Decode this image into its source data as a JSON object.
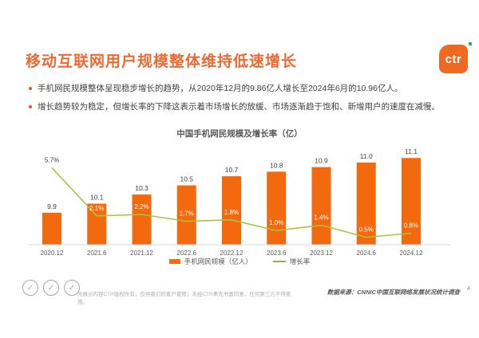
{
  "slide": {
    "title": "移动互联网用户规模整体维持低速增长",
    "bullets": [
      "手机网民规模整体呈现稳步增长的趋势，从2020年12月的9.86亿人增长至2024年6月的10.96亿人。",
      "增长趋势较为稳定，但增长率的下降这表示着市场增长的放缓、市场逐渐趋于饱和、新增用户的速度在减慢。"
    ],
    "page_number": "4"
  },
  "logo": {
    "text": "ctr"
  },
  "chart_data": {
    "type": "bar",
    "title": "中国手机网民规模及增长率（亿）",
    "categories": [
      "2020.12",
      "2021.6",
      "2021.12",
      "2022.6",
      "2022.12",
      "2023.6",
      "2023.12",
      "2024.6",
      "2024.12"
    ],
    "series": [
      {
        "name": "手机网民规模（亿人）",
        "type": "bar",
        "values": [
          9.9,
          10.1,
          10.3,
          10.5,
          10.7,
          10.8,
          10.9,
          11.0,
          11.1
        ],
        "value_labels": [
          "9.9",
          "10.1",
          "10.3",
          "10.5",
          "10.7",
          "10.8",
          "10.9",
          "11.0",
          "11.1"
        ],
        "color": "#F3690E",
        "axis_range": [
          9.2,
          11.47
        ]
      },
      {
        "name": "增长率",
        "type": "line",
        "values": [
          5.7,
          2.1,
          2.2,
          1.7,
          1.8,
          1.0,
          1.4,
          0.5,
          0.8
        ],
        "value_labels": [
          "5.7%",
          "2.1%",
          "2.2%",
          "1.7%",
          "1.8%",
          "1.0%",
          "1.4%",
          "0.5%",
          "0.8%"
        ],
        "color": "#A9C23F",
        "axis_range": [
          0,
          7.1
        ]
      }
    ],
    "legend_position": "bottom",
    "grid": false
  },
  "footer": {
    "disclaimer": "所展示内容CTR版权所有，仅供我们的客户使用；未经CTR事先书面同意，任何第三方不得使用。",
    "source": "数据来源：CNNIC中国互联网络发展状况统计调查",
    "badge_icon": "check"
  },
  "colors": {
    "accent_orange": "#ED6A33",
    "bar_orange": "#F3690E",
    "line_green": "#A9C23F",
    "text_dark": "#404040",
    "text_gray": "#595959",
    "axis_gray": "#D9D9D9"
  }
}
